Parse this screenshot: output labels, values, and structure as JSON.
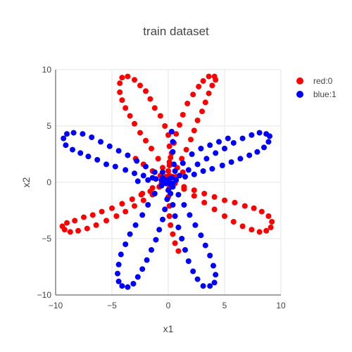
{
  "chart_data": {
    "type": "scatter",
    "title": "train dataset",
    "xlabel": "x1",
    "ylabel": "x2",
    "xlim": [
      -10,
      10
    ],
    "ylim": [
      -10,
      10
    ],
    "xticks": [
      "−10",
      "−5",
      "0",
      "5",
      "10"
    ],
    "yticks": [
      "10",
      "5",
      "0",
      "−5",
      "−10"
    ],
    "grid": true,
    "legend_position": "top-right",
    "series": [
      {
        "name": "red:0",
        "color": "#ff0000",
        "points": [
          [
            0.0,
            0.0
          ],
          [
            0.1,
            0.6
          ],
          [
            0.1,
            1.5
          ],
          [
            0.2,
            2.2
          ],
          [
            0.1,
            3.2
          ],
          [
            0.0,
            4.2
          ],
          [
            -0.3,
            5.0
          ],
          [
            -0.7,
            5.9
          ],
          [
            -1.2,
            6.6
          ],
          [
            -1.6,
            7.4
          ],
          [
            -2.0,
            8.1
          ],
          [
            -2.5,
            8.6
          ],
          [
            -3.0,
            9.1
          ],
          [
            -3.6,
            9.4
          ],
          [
            -4.1,
            9.3
          ],
          [
            -4.3,
            8.8
          ],
          [
            -4.3,
            8.0
          ],
          [
            -4.1,
            7.3
          ],
          [
            -3.8,
            6.6
          ],
          [
            -3.4,
            5.9
          ],
          [
            -3.0,
            5.2
          ],
          [
            -2.5,
            4.4
          ],
          [
            -2.0,
            3.7
          ],
          [
            -1.5,
            3.0
          ],
          [
            -0.9,
            2.1
          ],
          [
            -0.5,
            1.3
          ],
          [
            -0.2,
            0.5
          ],
          [
            0.4,
            0.5
          ],
          [
            0.8,
            1.3
          ],
          [
            1.2,
            2.1
          ],
          [
            1.6,
            2.9
          ],
          [
            2.0,
            3.8
          ],
          [
            2.3,
            4.6
          ],
          [
            2.6,
            5.5
          ],
          [
            3.0,
            6.3
          ],
          [
            3.3,
            7.1
          ],
          [
            3.6,
            7.9
          ],
          [
            3.9,
            8.6
          ],
          [
            4.2,
            9.1
          ],
          [
            4.1,
            9.4
          ],
          [
            3.6,
            9.4
          ],
          [
            3.1,
            9.0
          ],
          [
            2.7,
            8.5
          ],
          [
            2.2,
            7.8
          ],
          [
            1.7,
            7.0
          ],
          [
            1.3,
            6.0
          ],
          [
            1.0,
            5.1
          ],
          [
            0.7,
            4.3
          ],
          [
            0.5,
            3.5
          ],
          [
            0.3,
            2.6
          ],
          [
            0.1,
            1.8
          ],
          [
            0.0,
            1.0
          ],
          [
            0.6,
            -0.1
          ],
          [
            1.4,
            -0.6
          ],
          [
            2.3,
            -1.2
          ],
          [
            3.2,
            -1.8
          ],
          [
            4.1,
            -2.4
          ],
          [
            5.0,
            -3.0
          ],
          [
            5.8,
            -3.5
          ],
          [
            6.6,
            -3.9
          ],
          [
            7.4,
            -4.2
          ],
          [
            8.1,
            -4.4
          ],
          [
            8.7,
            -4.3
          ],
          [
            9.1,
            -4.0
          ],
          [
            9.2,
            -3.5
          ],
          [
            8.9,
            -3.0
          ],
          [
            8.3,
            -2.6
          ],
          [
            7.6,
            -2.3
          ],
          [
            6.8,
            -2.1
          ],
          [
            5.9,
            -1.8
          ],
          [
            5.0,
            -1.6
          ],
          [
            4.1,
            -1.3
          ],
          [
            3.2,
            -1.0
          ],
          [
            2.3,
            -0.7
          ],
          [
            1.4,
            -0.4
          ],
          [
            0.1,
            -0.5
          ],
          [
            0.0,
            -1.3
          ],
          [
            0.1,
            -2.1
          ],
          [
            0.1,
            -3.0
          ],
          [
            0.2,
            -3.8
          ],
          [
            0.4,
            -4.6
          ],
          [
            0.6,
            -5.4
          ],
          [
            0.9,
            -6.1
          ],
          [
            -0.6,
            -0.1
          ],
          [
            -1.4,
            -0.5
          ],
          [
            -2.3,
            -1.0
          ],
          [
            -3.2,
            -1.5
          ],
          [
            -4.1,
            -1.9
          ],
          [
            -5.0,
            -2.3
          ],
          [
            -5.9,
            -2.6
          ],
          [
            -6.7,
            -2.9
          ],
          [
            -7.5,
            -3.1
          ],
          [
            -8.3,
            -3.4
          ],
          [
            -9.0,
            -3.6
          ],
          [
            -9.4,
            -3.9
          ],
          [
            -9.2,
            -4.2
          ],
          [
            -8.7,
            -4.4
          ],
          [
            -8.0,
            -4.3
          ],
          [
            -7.2,
            -4.1
          ],
          [
            -6.4,
            -3.8
          ],
          [
            -5.5,
            -3.4
          ],
          [
            -4.6,
            -3.0
          ],
          [
            -3.8,
            -2.6
          ],
          [
            -3.0,
            -2.1
          ],
          [
            -2.2,
            -1.6
          ],
          [
            -1.4,
            -1.1
          ],
          [
            -0.8,
            -0.4
          ],
          [
            -1.6,
            -0.8
          ],
          [
            -2.4,
            -1.1
          ],
          [
            -0.7,
            0.6
          ],
          [
            -1.4,
            1.0
          ],
          [
            -2.2,
            1.6
          ],
          [
            -2.9,
            2.1
          ],
          [
            0.7,
            0.5
          ],
          [
            1.3,
            0.9
          ]
        ]
      },
      {
        "name": "blue:1",
        "color": "#0000ff",
        "points": [
          [
            0.0,
            0.0
          ],
          [
            0.7,
            0.2
          ],
          [
            1.5,
            0.5
          ],
          [
            2.3,
            0.7
          ],
          [
            3.1,
            1.0
          ],
          [
            3.9,
            1.2
          ],
          [
            4.8,
            1.5
          ],
          [
            5.6,
            1.8
          ],
          [
            6.4,
            2.1
          ],
          [
            7.2,
            2.4
          ],
          [
            7.9,
            2.7
          ],
          [
            8.5,
            3.1
          ],
          [
            8.9,
            3.6
          ],
          [
            9.0,
            4.1
          ],
          [
            8.7,
            4.3
          ],
          [
            8.1,
            4.4
          ],
          [
            7.4,
            4.2
          ],
          [
            6.6,
            3.9
          ],
          [
            5.8,
            3.5
          ],
          [
            5.0,
            3.0
          ],
          [
            4.2,
            2.6
          ],
          [
            3.4,
            2.1
          ],
          [
            2.6,
            1.6
          ],
          [
            1.8,
            1.1
          ],
          [
            1.0,
            0.6
          ],
          [
            0.6,
            1.0
          ],
          [
            1.3,
            1.7
          ],
          [
            2.1,
            2.5
          ],
          [
            2.9,
            3.0
          ],
          [
            3.7,
            3.3
          ],
          [
            4.5,
            3.6
          ],
          [
            5.3,
            3.9
          ],
          [
            -0.6,
            0.2
          ],
          [
            -1.4,
            0.4
          ],
          [
            -2.2,
            0.6
          ],
          [
            -3.0,
            0.8
          ],
          [
            -3.8,
            1.1
          ],
          [
            -4.7,
            1.4
          ],
          [
            -5.5,
            1.6
          ],
          [
            -6.3,
            2.0
          ],
          [
            -7.1,
            2.3
          ],
          [
            -7.8,
            2.6
          ],
          [
            -8.5,
            2.9
          ],
          [
            -9.1,
            3.3
          ],
          [
            -9.3,
            3.9
          ],
          [
            -9.0,
            4.3
          ],
          [
            -8.4,
            4.4
          ],
          [
            -7.6,
            4.3
          ],
          [
            -6.8,
            4.0
          ],
          [
            -6.0,
            3.6
          ],
          [
            -5.2,
            3.2
          ],
          [
            -4.4,
            2.8
          ],
          [
            -3.6,
            2.4
          ],
          [
            -2.8,
            1.9
          ],
          [
            -2.0,
            1.4
          ],
          [
            -1.2,
            0.9
          ],
          [
            -0.5,
            0.4
          ],
          [
            -0.6,
            -0.3
          ],
          [
            -1.2,
            -1.0
          ],
          [
            -1.8,
            -2.0
          ],
          [
            -2.3,
            -2.9
          ],
          [
            -2.9,
            -3.8
          ],
          [
            -3.4,
            -4.6
          ],
          [
            -3.8,
            -5.5
          ],
          [
            -4.2,
            -6.4
          ],
          [
            -4.4,
            -7.3
          ],
          [
            -4.5,
            -8.1
          ],
          [
            -4.4,
            -8.8
          ],
          [
            -4.1,
            -9.2
          ],
          [
            -3.6,
            -9.3
          ],
          [
            -3.1,
            -9.0
          ],
          [
            -2.7,
            -8.4
          ],
          [
            -2.3,
            -7.7
          ],
          [
            -1.9,
            -6.9
          ],
          [
            -1.5,
            -6.0
          ],
          [
            -1.1,
            -5.1
          ],
          [
            -0.8,
            -4.2
          ],
          [
            -0.5,
            -3.3
          ],
          [
            -0.3,
            -2.4
          ],
          [
            -0.1,
            -1.5
          ],
          [
            0.0,
            -0.7
          ],
          [
            0.4,
            -0.4
          ],
          [
            0.9,
            -1.1
          ],
          [
            1.4,
            -2.0
          ],
          [
            1.9,
            -2.9
          ],
          [
            2.4,
            -3.8
          ],
          [
            2.9,
            -4.7
          ],
          [
            3.3,
            -5.6
          ],
          [
            3.7,
            -6.5
          ],
          [
            4.0,
            -7.4
          ],
          [
            4.2,
            -8.2
          ],
          [
            4.1,
            -8.9
          ],
          [
            3.7,
            -9.2
          ],
          [
            3.1,
            -9.2
          ],
          [
            2.6,
            -8.6
          ],
          [
            2.2,
            -7.9
          ],
          [
            1.8,
            -7.0
          ],
          [
            1.5,
            -6.0
          ],
          [
            1.2,
            -5.0
          ],
          [
            0.9,
            -4.0
          ],
          [
            0.6,
            -3.0
          ],
          [
            0.4,
            -2.0
          ],
          [
            0.2,
            -1.0
          ],
          [
            0.3,
            0.4
          ],
          [
            0.5,
            1.6
          ],
          [
            0.4,
            2.7
          ],
          [
            0.4,
            3.6
          ],
          [
            0.3,
            4.5
          ],
          [
            -0.3,
            0.2
          ],
          [
            0.2,
            -0.2
          ],
          [
            -0.1,
            0.1
          ],
          [
            0.1,
            0.3
          ],
          [
            -0.2,
            -0.1
          ],
          [
            0.4,
            -0.1
          ],
          [
            -0.4,
            0.0
          ],
          [
            -0.5,
            0.9
          ],
          [
            -1.1,
            0.3
          ],
          [
            -1.8,
            0.2
          ],
          [
            -2.7,
            0.1
          ]
        ]
      }
    ]
  }
}
